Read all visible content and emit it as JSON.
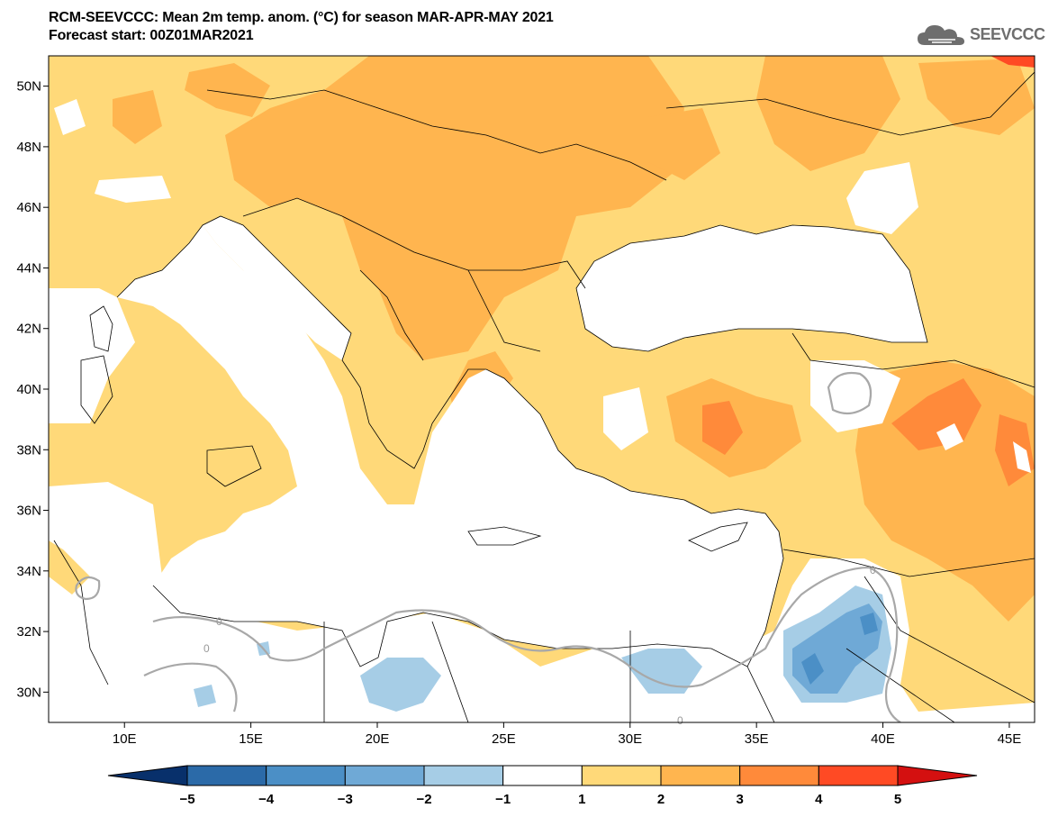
{
  "header": {
    "title_line1": "RCM-SEEVCCC: Mean 2m temp. anom. (°C) for season MAR-APR-MAY 2021",
    "title_line2": "Forecast start: 00Z01MAR2021"
  },
  "logo": {
    "text": "SEEVCCC",
    "icon": "cloud-icon",
    "color": "#6e6e6e"
  },
  "map": {
    "lon_range": [
      7,
      46
    ],
    "lat_range": [
      29,
      51
    ],
    "x_ticks": [
      {
        "lon": 10,
        "label": "10E"
      },
      {
        "lon": 15,
        "label": "15E"
      },
      {
        "lon": 20,
        "label": "20E"
      },
      {
        "lon": 25,
        "label": "25E"
      },
      {
        "lon": 30,
        "label": "30E"
      },
      {
        "lon": 35,
        "label": "35E"
      },
      {
        "lon": 40,
        "label": "40E"
      },
      {
        "lon": 45,
        "label": "45E"
      }
    ],
    "y_ticks": [
      {
        "lat": 50,
        "label": "50N"
      },
      {
        "lat": 48,
        "label": "48N"
      },
      {
        "lat": 46,
        "label": "46N"
      },
      {
        "lat": 44,
        "label": "44N"
      },
      {
        "lat": 42,
        "label": "42N"
      },
      {
        "lat": 40,
        "label": "40N"
      },
      {
        "lat": 38,
        "label": "38N"
      },
      {
        "lat": 36,
        "label": "36N"
      },
      {
        "lat": 34,
        "label": "34N"
      },
      {
        "lat": 32,
        "label": "32N"
      },
      {
        "lat": 30,
        "label": "30N"
      }
    ],
    "contour_labels": [
      "0",
      "0",
      "0",
      "0"
    ],
    "base_anomaly_color": "#ffd979"
  },
  "colorbar": {
    "levels": [
      "−5",
      "−4",
      "−3",
      "−2",
      "−1",
      "1",
      "2",
      "3",
      "4",
      "5"
    ],
    "colors": [
      "#08306b",
      "#2b6aa8",
      "#4b8fc6",
      "#6fa9d6",
      "#a6cde6",
      "#ffffff",
      "#ffd979",
      "#ffb54f",
      "#ff8a3a",
      "#ff4a24",
      "#d41010"
    ]
  }
}
